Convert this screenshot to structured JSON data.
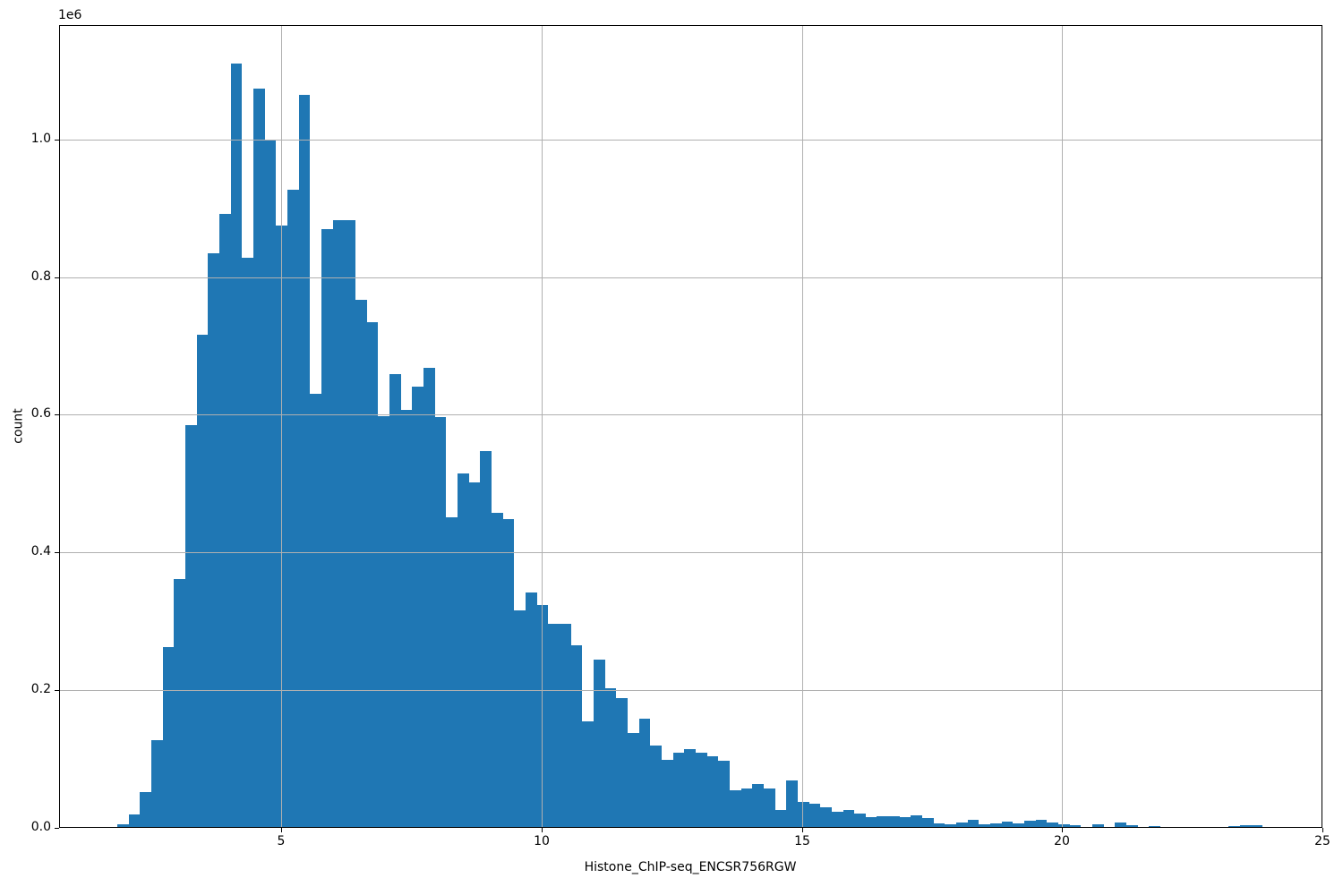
{
  "chart_data": {
    "type": "bar",
    "subtype": "histogram",
    "title": "",
    "xlabel": "Histone_ChIP-seq_ENCSR756RGW",
    "ylabel": "count",
    "y_offset_text": "1e6",
    "bar_color": "#1f77b4",
    "grid_color": "#b0b0b0",
    "axis_color": "#000000",
    "background_color": "#ffffff",
    "grid": true,
    "legend_position": "none",
    "xlim": [
      0.73,
      25.0
    ],
    "ylim": [
      0,
      1166000
    ],
    "x_ticks": [
      5,
      10,
      15,
      20,
      25
    ],
    "x_tick_labels": [
      "5",
      "10",
      "15",
      "20",
      "25"
    ],
    "y_ticks": [
      0,
      200000,
      400000,
      600000,
      800000,
      1000000
    ],
    "y_tick_labels": [
      "0.0",
      "0.2",
      "0.4",
      "0.6",
      "0.8",
      "1.0"
    ],
    "bins": {
      "start": 1.85,
      "width": 0.2178,
      "counts": [
        5000,
        20000,
        52000,
        127000,
        262000,
        361000,
        585000,
        716000,
        835000,
        892000,
        1110000,
        828000,
        1074000,
        1000000,
        875000,
        927000,
        1064000,
        630000,
        870000,
        882000,
        882000,
        767000,
        735000,
        598000,
        659000,
        607000,
        641000,
        668000,
        597000,
        451000,
        515000,
        502000,
        547000,
        457000,
        449000,
        316000,
        342000,
        324000,
        296000,
        296000,
        265000,
        155000,
        244000,
        203000,
        189000,
        138000,
        159000,
        119000,
        99000,
        109000,
        114000,
        109000,
        104000,
        98000,
        54000,
        57000,
        64000,
        57000,
        26000,
        69000,
        38000,
        35000,
        30000,
        23000,
        26000,
        21000,
        15000,
        16500,
        17000,
        16000,
        18000,
        14000,
        6500,
        5000,
        8000,
        12000,
        5000,
        6500,
        9000,
        6500,
        11000,
        12000,
        8000,
        5000,
        4000,
        0,
        5500,
        0,
        7500,
        4000,
        0,
        2000,
        0,
        0,
        0,
        0,
        0,
        0,
        2000,
        3500,
        3500
      ]
    }
  }
}
